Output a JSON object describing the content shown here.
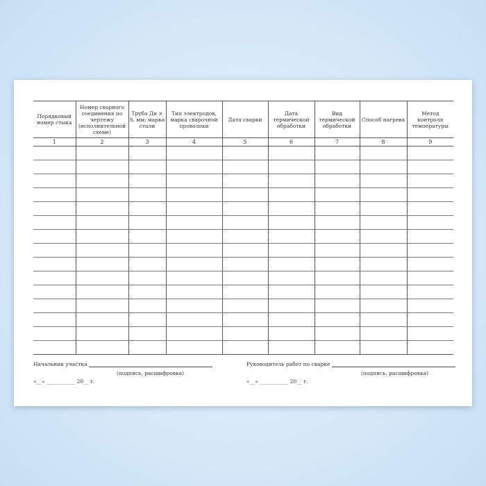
{
  "columns": [
    {
      "label": "Порядковый номер стыка",
      "num": "1"
    },
    {
      "label": "Номер сварного соединения по чертежу (исполнительной схеме)",
      "num": "2"
    },
    {
      "label": "Труба Дн × S, мм; марка стали",
      "num": "3"
    },
    {
      "label": "Тип электродов, марка сварочной проволоки",
      "num": "4"
    },
    {
      "label": "Дата сварки",
      "num": "5"
    },
    {
      "label": "Дата термической обработки",
      "num": "6"
    },
    {
      "label": "Вид термической обработки",
      "num": "7"
    },
    {
      "label": "Способ нагрева",
      "num": "8"
    },
    {
      "label": "Метод контроля температуры",
      "num": "9"
    }
  ],
  "empty_rows": 15,
  "signatures": [
    {
      "title": "Начальник участка",
      "hint": "(подпись, расшифровка)",
      "date": "«__» ___________ 20__ г."
    },
    {
      "title": "Руководитель работ по сварке",
      "hint": "(подпись, расшифровка)",
      "date": "«__» ___________ 20__ г."
    }
  ]
}
